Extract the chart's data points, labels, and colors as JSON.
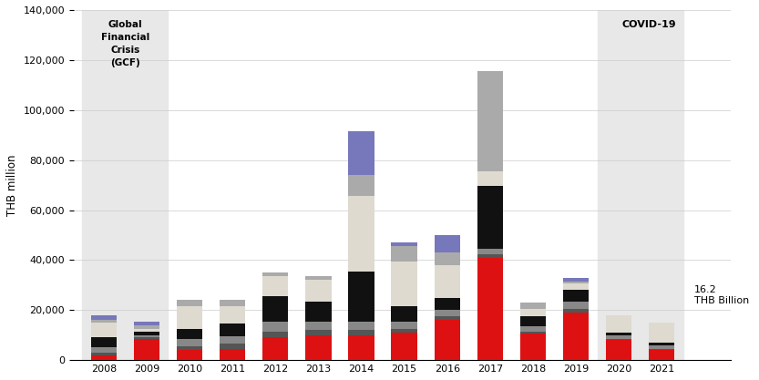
{
  "years": [
    "2008",
    "2009",
    "2010",
    "2011",
    "2012",
    "2013",
    "2014",
    "2015",
    "2016",
    "2017",
    "2018",
    "2019",
    "2020",
    "2021"
  ],
  "segments": {
    "red": [
      2000,
      8500,
      4000,
      4500,
      9000,
      10000,
      10000,
      11000,
      16000,
      41000,
      10500,
      19000,
      8000,
      4000
    ],
    "dark_gray": [
      1000,
      500,
      1500,
      2000,
      2500,
      2000,
      2000,
      1500,
      1500,
      1500,
      1000,
      1500,
      500,
      500
    ],
    "medium_gray": [
      2000,
      1000,
      3000,
      3000,
      4000,
      3500,
      3500,
      3000,
      2500,
      2000,
      2000,
      3000,
      1500,
      1500
    ],
    "black": [
      4000,
      1500,
      4000,
      5000,
      10000,
      8000,
      20000,
      6000,
      5000,
      25000,
      4000,
      4500,
      1000,
      1000
    ],
    "light_beige": [
      6000,
      1000,
      9000,
      7000,
      8000,
      8500,
      30000,
      18000,
      13000,
      6000,
      3000,
      2500,
      7000,
      8000
    ],
    "light_gray": [
      1000,
      1500,
      2500,
      2500,
      1500,
      1500,
      8500,
      6000,
      5000,
      40000,
      2500,
      1000,
      0,
      0
    ],
    "purple": [
      2000,
      1500,
      0,
      0,
      0,
      0,
      17500,
      1500,
      7000,
      0,
      0,
      1500,
      0,
      0
    ]
  },
  "gcf_label": "Global\nFinancial\nCrisis\n(GCF)",
  "covid_label": "COVID-19",
  "annotation_text": "16.2\nTHB Billion",
  "ylabel": "THB million",
  "ylim": [
    0,
    140000
  ],
  "yticks": [
    0,
    20000,
    40000,
    60000,
    80000,
    100000,
    120000,
    140000
  ],
  "colors": {
    "red": "#dd1111",
    "dark_gray": "#555555",
    "medium_gray": "#888888",
    "black": "#111111",
    "light_beige": "#dedad0",
    "light_gray": "#aaaaaa",
    "purple": "#7777bb"
  },
  "shade_color": "#e8e8e8",
  "background_color": "#ffffff"
}
